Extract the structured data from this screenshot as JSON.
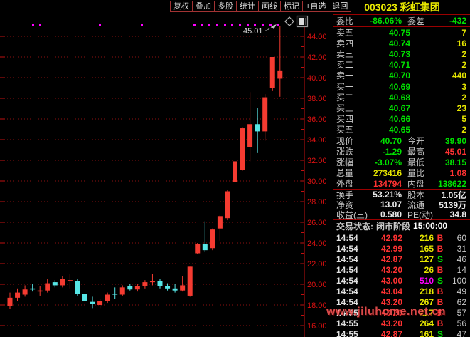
{
  "titlebar": {
    "menu_items": [
      "复权",
      "叠加",
      "多股",
      "统计",
      "画线",
      "标记",
      "+自选",
      "退回"
    ],
    "stock_title": "003023 彩虹集团"
  },
  "chart_data": {
    "type": "candlestick",
    "x_unit": "trading-day",
    "title": "",
    "ylim": [
      15,
      46
    ],
    "y_ticks": [
      "44.00",
      "42.00",
      "40.00",
      "38.00",
      "36.00",
      "34.00",
      "32.00",
      "30.00",
      "28.00",
      "26.00",
      "24.00",
      "22.00",
      "20.00",
      "18.00",
      "16.00"
    ],
    "y_minor_step": 1,
    "grid": "dotted-red-horizontal",
    "high_annotation": "45.01",
    "up_color": "#f53b31",
    "down_color": "#56e5e5",
    "dot_color": "#ff00ff",
    "candles_ohlc": [
      [
        17.9,
        19.2,
        17.6,
        18.7
      ],
      [
        18.7,
        19.6,
        18.4,
        19.2
      ],
      [
        19.0,
        19.9,
        18.8,
        19.5
      ],
      [
        19.6,
        20.0,
        19.3,
        19.5
      ],
      [
        19.3,
        19.8,
        18.9,
        19.4
      ],
      [
        19.4,
        20.5,
        19.2,
        20.1
      ],
      [
        20.2,
        20.4,
        19.7,
        19.9
      ],
      [
        19.9,
        20.8,
        19.7,
        20.5
      ],
      [
        20.4,
        21.0,
        19.6,
        20.4
      ],
      [
        20.3,
        20.5,
        18.9,
        19.1
      ],
      [
        19.1,
        19.4,
        18.2,
        18.4
      ],
      [
        18.3,
        18.8,
        17.7,
        18.1
      ],
      [
        18.0,
        18.6,
        17.7,
        18.4
      ],
      [
        18.4,
        19.2,
        18.2,
        19.0
      ],
      [
        19.1,
        19.7,
        18.6,
        19.0
      ],
      [
        19.0,
        19.9,
        18.9,
        19.7
      ],
      [
        19.8,
        20.0,
        19.4,
        19.5
      ],
      [
        19.5,
        20.0,
        19.3,
        19.8
      ],
      [
        19.8,
        20.4,
        19.6,
        20.2
      ],
      [
        20.2,
        21.0,
        19.9,
        20.3
      ],
      [
        20.3,
        20.5,
        19.6,
        19.8
      ],
      [
        19.8,
        20.1,
        19.4,
        19.6
      ],
      [
        19.6,
        20.0,
        19.2,
        19.4
      ],
      [
        19.4,
        20.8,
        19.3,
        19.9
      ],
      [
        18.9,
        21.7,
        18.8,
        21.7
      ],
      [
        23.0,
        24.0,
        22.9,
        23.9
      ],
      [
        23.9,
        26.1,
        23.1,
        23.3
      ],
      [
        23.5,
        25.4,
        23.3,
        25.3
      ],
      [
        25.4,
        26.7,
        24.2,
        26.6
      ],
      [
        26.4,
        29.1,
        26.2,
        29.0
      ],
      [
        29.9,
        32.0,
        28.8,
        31.9
      ],
      [
        31.1,
        35.2,
        31.0,
        35.1
      ],
      [
        33.3,
        38.6,
        31.9,
        35.5
      ],
      [
        35.5,
        37.1,
        32.7,
        34.8
      ],
      [
        34.8,
        38.4,
        33.9,
        38.1
      ],
      [
        39.0,
        42.0,
        38.7,
        42.0
      ],
      [
        39.9,
        45.01,
        38.15,
        40.7
      ]
    ],
    "marker_dots_x": [
      46,
      56,
      140,
      199,
      273,
      284,
      294,
      305,
      316,
      326,
      337,
      348,
      358,
      369,
      380,
      390
    ],
    "icons": [
      "diamond-icon",
      "panel-icon"
    ]
  },
  "panel": {
    "weibi": {
      "label1": "委比",
      "value1": "-86.06%",
      "label2": "委差",
      "value2": "-432"
    },
    "asks": [
      {
        "label": "卖五",
        "price": "40.75",
        "vol": "7"
      },
      {
        "label": "卖四",
        "price": "40.74",
        "vol": "16"
      },
      {
        "label": "卖三",
        "price": "40.73",
        "vol": "2"
      },
      {
        "label": "卖二",
        "price": "40.71",
        "vol": "2"
      },
      {
        "label": "卖一",
        "price": "40.70",
        "vol": "440"
      }
    ],
    "bids": [
      {
        "label": "买一",
        "price": "40.69",
        "vol": "3"
      },
      {
        "label": "买二",
        "price": "40.68",
        "vol": "2"
      },
      {
        "label": "买三",
        "price": "40.67",
        "vol": "23"
      },
      {
        "label": "买四",
        "price": "40.66",
        "vol": "5"
      },
      {
        "label": "买五",
        "price": "40.65",
        "vol": "2"
      }
    ],
    "quote_rows": [
      {
        "l1": "现价",
        "v1": "40.70",
        "c1": "cg",
        "l2": "今开",
        "v2": "39.90",
        "c2": "cg"
      },
      {
        "l1": "涨跌",
        "v1": "-1.29",
        "c1": "cg",
        "l2": "最高",
        "v2": "45.01",
        "c2": "cr"
      },
      {
        "l1": "涨幅",
        "v1": "-3.07%",
        "c1": "cg",
        "l2": "最低",
        "v2": "38.15",
        "c2": "cg"
      },
      {
        "l1": "总量",
        "v1": "273416",
        "c1": "cy",
        "l2": "量比",
        "v2": "1.08",
        "c2": "cr"
      },
      {
        "l1": "外盘",
        "v1": "134794",
        "c1": "cr",
        "l2": "内盘",
        "v2": "138622",
        "c2": "cg"
      }
    ],
    "stat_rows": [
      {
        "l1": "换手",
        "v1": "53.21%",
        "c1": "cw",
        "l2": "股本",
        "v2": "1.05亿",
        "c2": "cw"
      },
      {
        "l1": "净资",
        "v1": "13.07",
        "c1": "cw",
        "l2": "流通",
        "v2": "5139万",
        "c2": "cw"
      },
      {
        "l1": "收益(三)",
        "v1": "0.580",
        "c1": "cw",
        "l2": "PE(动)",
        "v2": "34.8",
        "c2": "cw"
      }
    ],
    "status": {
      "label": "交易状态:",
      "value": "闭市阶段",
      "time": "15:00:00"
    },
    "ticks": [
      {
        "t": "14:54",
        "p": "42.92",
        "v": "216",
        "vc": "cy",
        "d": "B",
        "n": "60"
      },
      {
        "t": "14:54",
        "p": "42.99",
        "v": "165",
        "vc": "cy",
        "d": "B",
        "n": "31"
      },
      {
        "t": "14:54",
        "p": "42.87",
        "v": "127",
        "vc": "cy",
        "d": "S",
        "n": "46"
      },
      {
        "t": "14:54",
        "p": "43.20",
        "v": "26",
        "vc": "cy",
        "d": "B",
        "n": "14"
      },
      {
        "t": "14:54",
        "p": "43.00",
        "v": "510",
        "vc": "cm",
        "d": "S",
        "n": "100"
      },
      {
        "t": "14:54",
        "p": "43.04",
        "v": "218",
        "vc": "cy",
        "d": "B",
        "n": "49"
      },
      {
        "t": "14:54",
        "p": "43.20",
        "v": "267",
        "vc": "cy",
        "d": "B",
        "n": "62"
      },
      {
        "t": "14:55",
        "p": "43.20",
        "v": "217",
        "vc": "cy",
        "d": "B",
        "n": "57"
      },
      {
        "t": "14:55",
        "p": "43.20",
        "v": "264",
        "vc": "cy",
        "d": "B",
        "n": "56"
      },
      {
        "t": "14:55",
        "p": "42.87",
        "v": "161",
        "vc": "cy",
        "d": "S",
        "n": "47"
      }
    ],
    "watermark": "www.jiluhome.net.cn"
  }
}
